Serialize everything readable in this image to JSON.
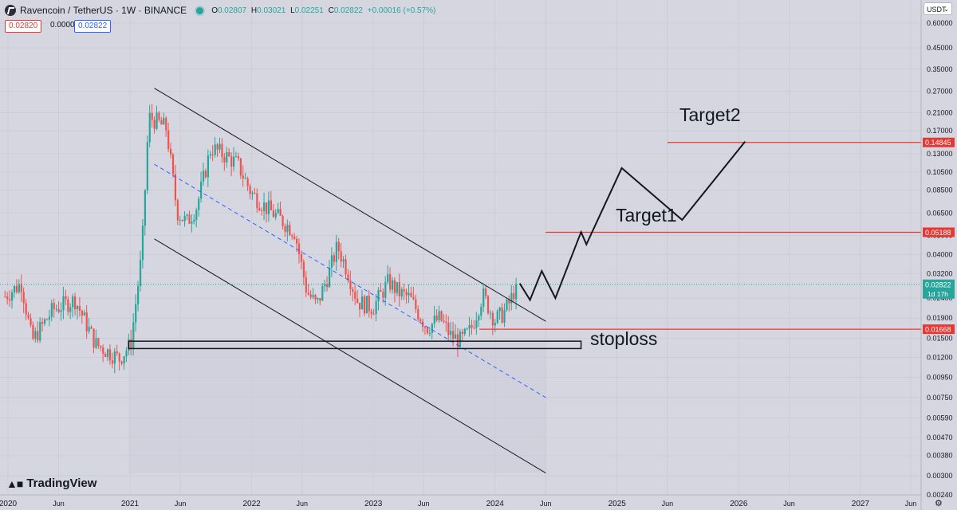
{
  "header": {
    "symbol": "Ravencoin / TetherUS · 1W · BINANCE",
    "open_label": "O",
    "open": "0.02807",
    "high_label": "H",
    "high": "0.03021",
    "low_label": "L",
    "low": "0.02251",
    "close_label": "C",
    "close": "0.02822",
    "change": "+0.00016 (+0.57%)"
  },
  "prices": {
    "sell": "0.02820",
    "spread": "0.00002",
    "buy": "0.02822"
  },
  "currency": "USDT",
  "brand": "TradingView",
  "colors": {
    "up": "#26a69a",
    "down": "#ef5350",
    "level": "#e53935",
    "axis_text": "#131722",
    "trend": "#2962ff"
  },
  "chart_data": {
    "type": "candlestick",
    "y_scale": "log",
    "ylim": [
      0.0024,
      0.6
    ],
    "y_ticks": [
      "0.60000",
      "0.45000",
      "0.35000",
      "0.27000",
      "0.21000",
      "0.17000",
      "0.13000",
      "0.10500",
      "0.08500",
      "0.06500",
      "0.05000",
      "0.04000",
      "0.03200",
      "0.02400",
      "0.01900",
      "0.01500",
      "0.01200",
      "0.00950",
      "0.00750",
      "0.00590",
      "0.00470",
      "0.00380",
      "0.00300",
      "0.00240"
    ],
    "x_ticks": [
      "2020",
      "Jun",
      "2021",
      "Jun",
      "2022",
      "Jun",
      "2023",
      "Jun",
      "2024",
      "Jun",
      "2025",
      "Jun",
      "2026",
      "Jun",
      "2027",
      "Jun"
    ],
    "x_tick_dates": [
      "2020-01-01",
      "2020-06-01",
      "2021-01-01",
      "2021-06-01",
      "2022-01-01",
      "2022-06-01",
      "2023-01-01",
      "2023-06-01",
      "2024-01-01",
      "2024-06-01",
      "2025-01-01",
      "2025-06-01",
      "2026-01-01",
      "2026-06-01",
      "2027-01-01",
      "2027-06-01"
    ],
    "current_price": "0.02822",
    "countdown": "1d 17h",
    "price_path": [
      {
        "date": "2019-12-23",
        "price": 0.0245
      },
      {
        "date": "2020-02-10",
        "price": 0.0285
      },
      {
        "date": "2020-03-13",
        "price": 0.0145
      },
      {
        "date": "2020-05-15",
        "price": 0.021
      },
      {
        "date": "2020-07-20",
        "price": 0.0235
      },
      {
        "date": "2020-09-20",
        "price": 0.014
      },
      {
        "date": "2020-11-30",
        "price": 0.0118
      },
      {
        "date": "2021-01-03",
        "price": 0.014
      },
      {
        "date": "2021-02-05",
        "price": 0.04
      },
      {
        "date": "2021-02-26",
        "price": 0.2
      },
      {
        "date": "2021-03-20",
        "price": 0.19
      },
      {
        "date": "2021-04-20",
        "price": 0.175
      },
      {
        "date": "2021-05-22",
        "price": 0.066
      },
      {
        "date": "2021-06-20",
        "price": 0.058
      },
      {
        "date": "2021-07-20",
        "price": 0.07
      },
      {
        "date": "2021-09-01",
        "price": 0.14
      },
      {
        "date": "2021-10-20",
        "price": 0.125
      },
      {
        "date": "2021-11-20",
        "price": 0.115
      },
      {
        "date": "2021-12-31",
        "price": 0.082
      },
      {
        "date": "2022-02-10",
        "price": 0.07
      },
      {
        "date": "2022-03-30",
        "price": 0.06
      },
      {
        "date": "2022-05-10",
        "price": 0.052
      },
      {
        "date": "2022-06-15",
        "price": 0.026
      },
      {
        "date": "2022-07-15",
        "price": 0.022
      },
      {
        "date": "2022-08-20",
        "price": 0.032
      },
      {
        "date": "2022-09-15",
        "price": 0.044
      },
      {
        "date": "2022-10-15",
        "price": 0.033
      },
      {
        "date": "2022-11-15",
        "price": 0.023
      },
      {
        "date": "2022-12-31",
        "price": 0.0215
      },
      {
        "date": "2023-02-15",
        "price": 0.029
      },
      {
        "date": "2023-03-20",
        "price": 0.0255
      },
      {
        "date": "2023-04-20",
        "price": 0.024
      },
      {
        "date": "2023-06-10",
        "price": 0.017
      },
      {
        "date": "2023-07-20",
        "price": 0.019
      },
      {
        "date": "2023-08-20",
        "price": 0.0155
      },
      {
        "date": "2023-09-20",
        "price": 0.0145
      },
      {
        "date": "2023-10-20",
        "price": 0.0165
      },
      {
        "date": "2023-11-25",
        "price": 0.025
      },
      {
        "date": "2023-12-31",
        "price": 0.0185
      },
      {
        "date": "2024-01-25",
        "price": 0.02
      },
      {
        "date": "2024-02-15",
        "price": 0.023
      },
      {
        "date": "2024-03-05",
        "price": 0.0282
      }
    ],
    "levels": [
      {
        "name": "Target2",
        "price": 0.14845,
        "label": "0.14845"
      },
      {
        "name": "Target1",
        "price": 0.05188,
        "label": "0.05188"
      },
      {
        "name": "stoploss",
        "price": 0.01668,
        "label": "0.01668"
      }
    ],
    "annotations": [
      "Target2",
      "Target1",
      "stoploss"
    ],
    "projection_path": [
      {
        "date": "2024-03-15",
        "price": 0.0285
      },
      {
        "date": "2024-04-15",
        "price": 0.0235
      },
      {
        "date": "2024-05-20",
        "price": 0.033
      },
      {
        "date": "2024-06-30",
        "price": 0.024
      },
      {
        "date": "2024-09-15",
        "price": 0.052
      },
      {
        "date": "2024-10-01",
        "price": 0.045
      },
      {
        "date": "2025-01-15",
        "price": 0.11
      },
      {
        "date": "2025-07-15",
        "price": 0.06
      },
      {
        "date": "2026-01-20",
        "price": 0.15
      }
    ],
    "channel_upper": [
      {
        "date": "2021-03-15",
        "price": 0.28
      },
      {
        "date": "2024-06-01",
        "price": 0.0183
      }
    ],
    "channel_lower": [
      {
        "date": "2021-03-15",
        "price": 0.048
      },
      {
        "date": "2024-06-01",
        "price": 0.0031
      }
    ],
    "channel_mid": [
      {
        "date": "2021-03-15",
        "price": 0.115
      },
      {
        "date": "2024-06-01",
        "price": 0.0075
      }
    ],
    "support_zone": {
      "date_start": "2020-12-28",
      "date_end": "2024-09-15",
      "price_low": 0.0133,
      "price_high": 0.0145
    }
  }
}
